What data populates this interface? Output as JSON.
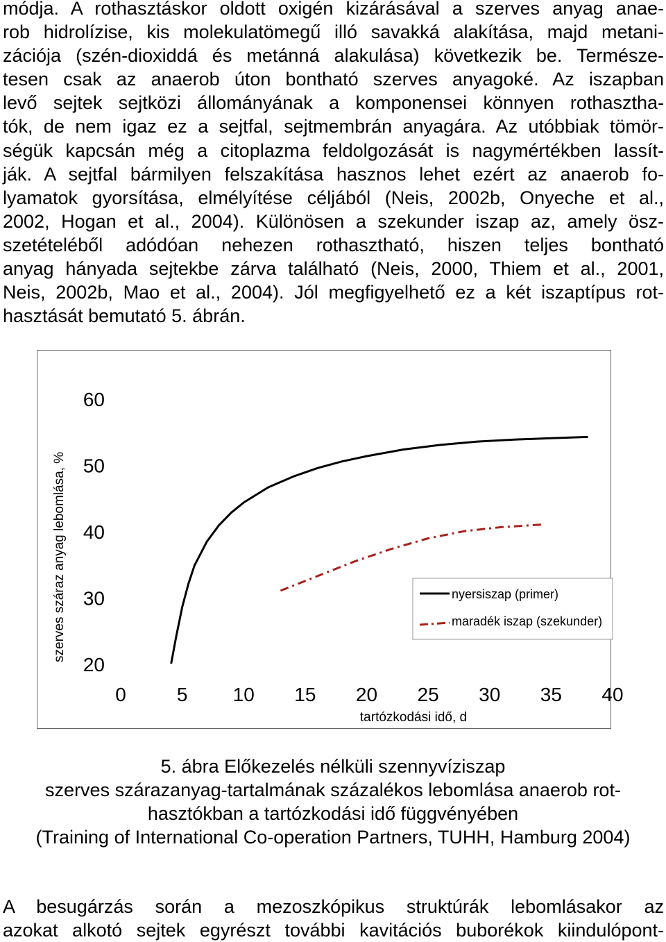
{
  "body_text": {
    "paragraph1_lines": [
      "módja. A rothasztáskor oldott oxigén kizárásával a szerves anyag anae-",
      "rob hidrolízise, kis molekulatömegű illó savakká alakítása, majd metani-",
      "zációja (szén-dioxiddá és metánná alakulása) következik be. Természe-",
      "tesen csak az anaerob úton bontható szerves anyagoké. Az iszapban",
      "levő sejtek sejtközi állományának a komponensei könnyen rothasztha-",
      "tók, de nem igaz ez a sejtfal, sejtmembrán anyagára. Az utóbbiak tömör-",
      "ségük kapcsán még a citoplazma feldolgozását is nagymértékben lassít-",
      "ják. A sejtfal bármilyen felszakítása hasznos lehet ezért az anaerob fo-",
      "lyamatok gyorsítása, elmélyítése céljából (Neis, 2002b, Onyeche et al.,",
      "2002, Hogan et al., 2004). Különösen a szekunder iszap az, amely ösz-",
      "szetételéből adódóan nehezen rothasztható, hiszen teljes bontható",
      "anyag hányada sejtekbe zárva található (Neis, 2000, Thiem et al., 2001,",
      "Neis, 2002b, Mao et al., 2004). Jól megfigyelhető ez a két iszaptípus rot-",
      "hasztását bemutató 5. ábrán."
    ],
    "paragraph2_lines": [
      "A besugárzás során a mezoszkópikus struktúrák lebomlásakor az",
      "azokat alkotó sejtek egyrészt további kavitációs buborékok kiindulópont-"
    ]
  },
  "caption": {
    "line1": "5. ábra Előkezelés nélküli szennyvíziszap",
    "line2": "szerves szárazanyag-tartalmának százalékos lebomlása anaerob rot-",
    "line3": "hasztókban a tartózkodási idő függvényében",
    "line4": "(Training of International Co-operation Partners, TUHH, Hamburg 2004)"
  },
  "chart_data": {
    "type": "line",
    "xlabel": "tartózkodási idő, d",
    "ylabel": "szerves száraz anyag lebomlása, %",
    "xlim": [
      0,
      40
    ],
    "ylim": [
      20,
      60
    ],
    "x_ticks": [
      "0",
      "5",
      "10",
      "15",
      "20",
      "25",
      "30",
      "35",
      "40"
    ],
    "y_ticks": [
      "20",
      "30",
      "40",
      "50",
      "60"
    ],
    "grid": false,
    "legend_position": "right",
    "series": [
      {
        "name": "nyersiszap (primer)",
        "style": "solid",
        "color": "#000000",
        "x": [
          4.1,
          4.5,
          5,
          5.5,
          6,
          7,
          8,
          9,
          10,
          12,
          14,
          16,
          18,
          20,
          23,
          26,
          29,
          32,
          35,
          38
        ],
        "y": [
          20,
          24,
          28.5,
          32,
          34.8,
          38.4,
          40.9,
          42.8,
          44.3,
          46.6,
          48.2,
          49.5,
          50.5,
          51.3,
          52.3,
          53.0,
          53.5,
          53.8,
          54.0,
          54.2
        ]
      },
      {
        "name": "maradék iszap (szekunder)",
        "style": "dash-dot",
        "color": "#a8211b",
        "x": [
          13,
          16,
          19,
          22,
          25,
          28,
          31,
          34.5
        ],
        "y": [
          31.0,
          33.2,
          35.4,
          37.3,
          38.9,
          40.0,
          40.6,
          41.0
        ]
      }
    ]
  }
}
